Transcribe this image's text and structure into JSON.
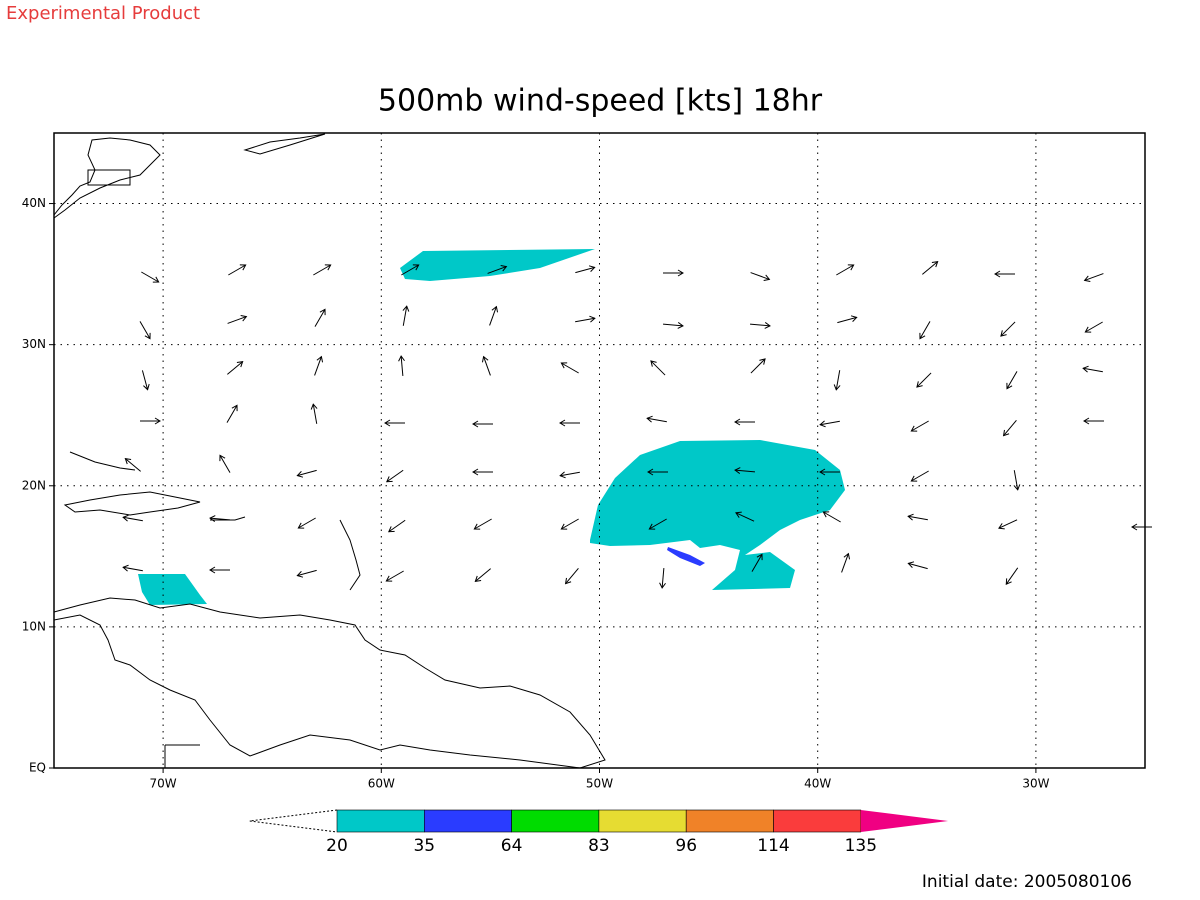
{
  "header": {
    "tag": "Experimental Product",
    "title": "500mb wind-speed [kts] 18hr"
  },
  "map": {
    "lon_range": [
      -75,
      -25
    ],
    "lat_range": [
      0,
      45
    ],
    "grid": true,
    "lon_ticks": [
      {
        "value": -70,
        "label": "70W"
      },
      {
        "value": -60,
        "label": "60W"
      },
      {
        "value": -50,
        "label": "50W"
      },
      {
        "value": -40,
        "label": "40W"
      },
      {
        "value": -30,
        "label": "30W"
      }
    ],
    "lat_ticks": [
      {
        "value": 0,
        "label": "EQ"
      },
      {
        "value": 10,
        "label": "10N"
      },
      {
        "value": 20,
        "label": "20N"
      },
      {
        "value": 30,
        "label": "30N"
      },
      {
        "value": 40,
        "label": "40N"
      }
    ]
  },
  "colorbar": {
    "levels": [
      20,
      35,
      64,
      83,
      96,
      114,
      135
    ],
    "colors": [
      "#00c8c8",
      "#2a3cff",
      "#00dc00",
      "#e6dc32",
      "#f08228",
      "#fa3c3c",
      "#f00082"
    ]
  },
  "footer": {
    "initial_date": "Initial date: 2005080106"
  }
}
